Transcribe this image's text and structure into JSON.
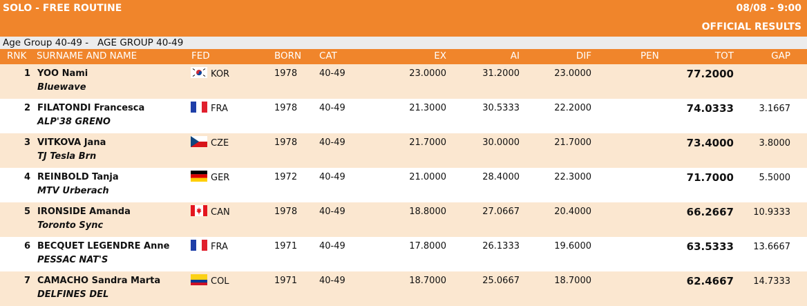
{
  "header": {
    "event": "SOLO - FREE ROUTINE",
    "datetime": "08/08 - 9:00",
    "status": "OFFICIAL RESULTS"
  },
  "group_label": "Age Group 40-49 -   AGE GROUP 40-49",
  "columns": {
    "rnk": "RNK",
    "name": "SURNAME AND NAME",
    "fed": "FED",
    "born": "BORN",
    "cat": "CAT",
    "ex": "EX",
    "ai": "AI",
    "dif": "DIF",
    "pen": "PEN",
    "tot": "TOT",
    "gap": "GAP"
  },
  "rows": [
    {
      "rank": "1",
      "name": "YOO Nami",
      "club": "Bluewave",
      "flag": "kor",
      "fed": "KOR",
      "born": "1978",
      "cat": "40-49",
      "ex": "23.0000",
      "ai": "31.2000",
      "dif": "23.0000",
      "pen": "",
      "tot": "77.2000",
      "gap": ""
    },
    {
      "rank": "2",
      "name": "FILATONDI Francesca",
      "club": "ALP'38 GRENO",
      "flag": "fra",
      "fed": "FRA",
      "born": "1978",
      "cat": "40-49",
      "ex": "21.3000",
      "ai": "30.5333",
      "dif": "22.2000",
      "pen": "",
      "tot": "74.0333",
      "gap": "3.1667"
    },
    {
      "rank": "3",
      "name": "VITKOVA Jana",
      "club": "TJ Tesla Brn",
      "flag": "cze",
      "fed": "CZE",
      "born": "1978",
      "cat": "40-49",
      "ex": "21.7000",
      "ai": "30.0000",
      "dif": "21.7000",
      "pen": "",
      "tot": "73.4000",
      "gap": "3.8000"
    },
    {
      "rank": "4",
      "name": "REINBOLD Tanja",
      "club": "MTV Urberach",
      "flag": "ger",
      "fed": "GER",
      "born": "1972",
      "cat": "40-49",
      "ex": "21.0000",
      "ai": "28.4000",
      "dif": "22.3000",
      "pen": "",
      "tot": "71.7000",
      "gap": "5.5000"
    },
    {
      "rank": "5",
      "name": "IRONSIDE Amanda",
      "club": "Toronto Sync",
      "flag": "can",
      "fed": "CAN",
      "born": "1978",
      "cat": "40-49",
      "ex": "18.8000",
      "ai": "27.0667",
      "dif": "20.4000",
      "pen": "",
      "tot": "66.2667",
      "gap": "10.9333"
    },
    {
      "rank": "6",
      "name": "BECQUET LEGENDRE Anne",
      "club": "PESSAC NAT'S",
      "flag": "fra",
      "fed": "FRA",
      "born": "1971",
      "cat": "40-49",
      "ex": "17.8000",
      "ai": "26.1333",
      "dif": "19.6000",
      "pen": "",
      "tot": "63.5333",
      "gap": "13.6667"
    },
    {
      "rank": "7",
      "name": "CAMACHO Sandra Marta",
      "club": "DELFINES DEL",
      "flag": "col",
      "fed": "COL",
      "born": "1971",
      "cat": "40-49",
      "ex": "18.7000",
      "ai": "25.0667",
      "dif": "18.7000",
      "pen": "",
      "tot": "62.4667",
      "gap": "14.7333"
    }
  ]
}
